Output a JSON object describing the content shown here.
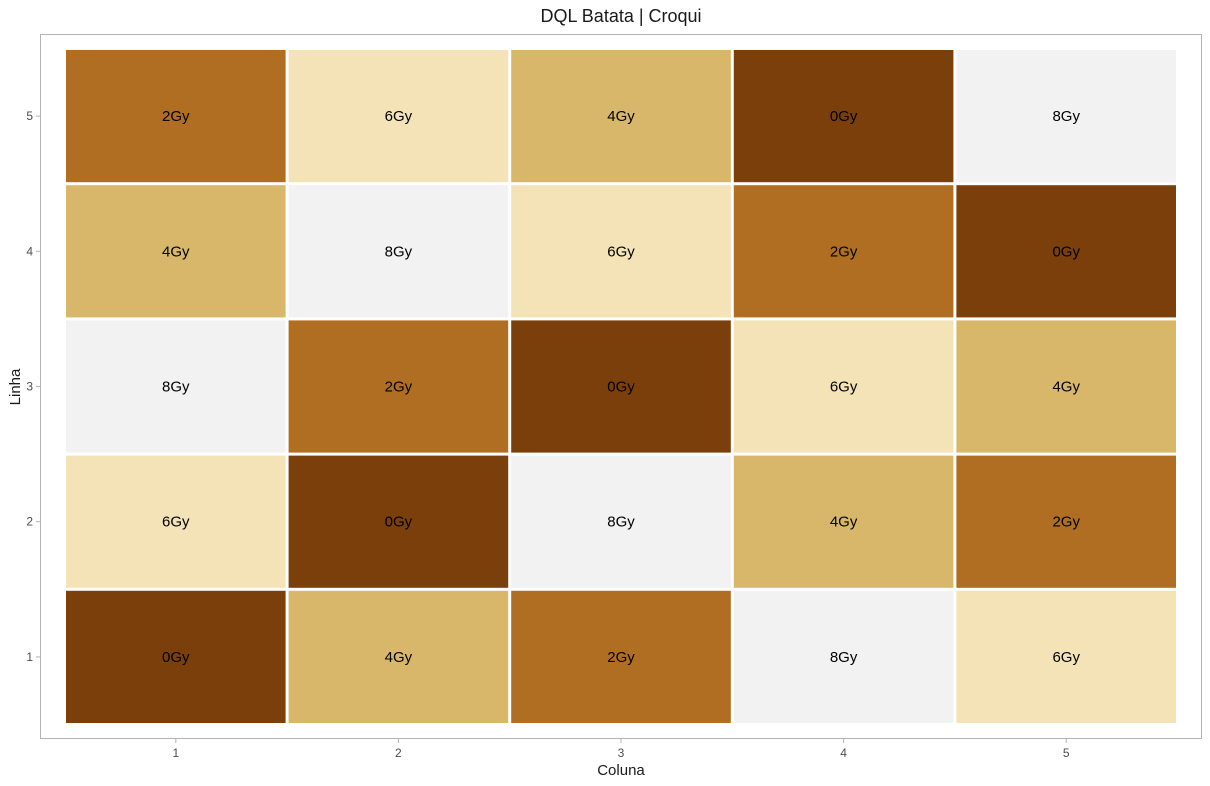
{
  "chart_data": {
    "type": "heatmap",
    "title": "DQL Batata | Croqui",
    "xlabel": "Coluna",
    "ylabel": "Linha",
    "x_categories": [
      "1",
      "2",
      "3",
      "4",
      "5"
    ],
    "y_categories": [
      "1",
      "2",
      "3",
      "4",
      "5"
    ],
    "xlim": [
      0.5,
      5.5
    ],
    "ylim": [
      0.5,
      5.5
    ],
    "grid": false,
    "legend": "none",
    "color_map": {
      "0Gy": "#7a3f0a",
      "2Gy": "#b06e22",
      "4Gy": "#d8b76b",
      "6Gy": "#f3e3b7",
      "8Gy": "#f2f2f2"
    },
    "cells": [
      {
        "x": 1,
        "y": 5,
        "label": "2Gy"
      },
      {
        "x": 2,
        "y": 5,
        "label": "6Gy"
      },
      {
        "x": 3,
        "y": 5,
        "label": "4Gy"
      },
      {
        "x": 4,
        "y": 5,
        "label": "0Gy"
      },
      {
        "x": 5,
        "y": 5,
        "label": "8Gy"
      },
      {
        "x": 1,
        "y": 4,
        "label": "4Gy"
      },
      {
        "x": 2,
        "y": 4,
        "label": "8Gy"
      },
      {
        "x": 3,
        "y": 4,
        "label": "6Gy"
      },
      {
        "x": 4,
        "y": 4,
        "label": "2Gy"
      },
      {
        "x": 5,
        "y": 4,
        "label": "0Gy"
      },
      {
        "x": 1,
        "y": 3,
        "label": "8Gy"
      },
      {
        "x": 2,
        "y": 3,
        "label": "2Gy"
      },
      {
        "x": 3,
        "y": 3,
        "label": "0Gy"
      },
      {
        "x": 4,
        "y": 3,
        "label": "6Gy"
      },
      {
        "x": 5,
        "y": 3,
        "label": "4Gy"
      },
      {
        "x": 1,
        "y": 2,
        "label": "6Gy"
      },
      {
        "x": 2,
        "y": 2,
        "label": "0Gy"
      },
      {
        "x": 3,
        "y": 2,
        "label": "8Gy"
      },
      {
        "x": 4,
        "y": 2,
        "label": "4Gy"
      },
      {
        "x": 5,
        "y": 2,
        "label": "2Gy"
      },
      {
        "x": 1,
        "y": 1,
        "label": "0Gy"
      },
      {
        "x": 2,
        "y": 1,
        "label": "4Gy"
      },
      {
        "x": 3,
        "y": 1,
        "label": "2Gy"
      },
      {
        "x": 4,
        "y": 1,
        "label": "8Gy"
      },
      {
        "x": 5,
        "y": 1,
        "label": "6Gy"
      }
    ]
  }
}
